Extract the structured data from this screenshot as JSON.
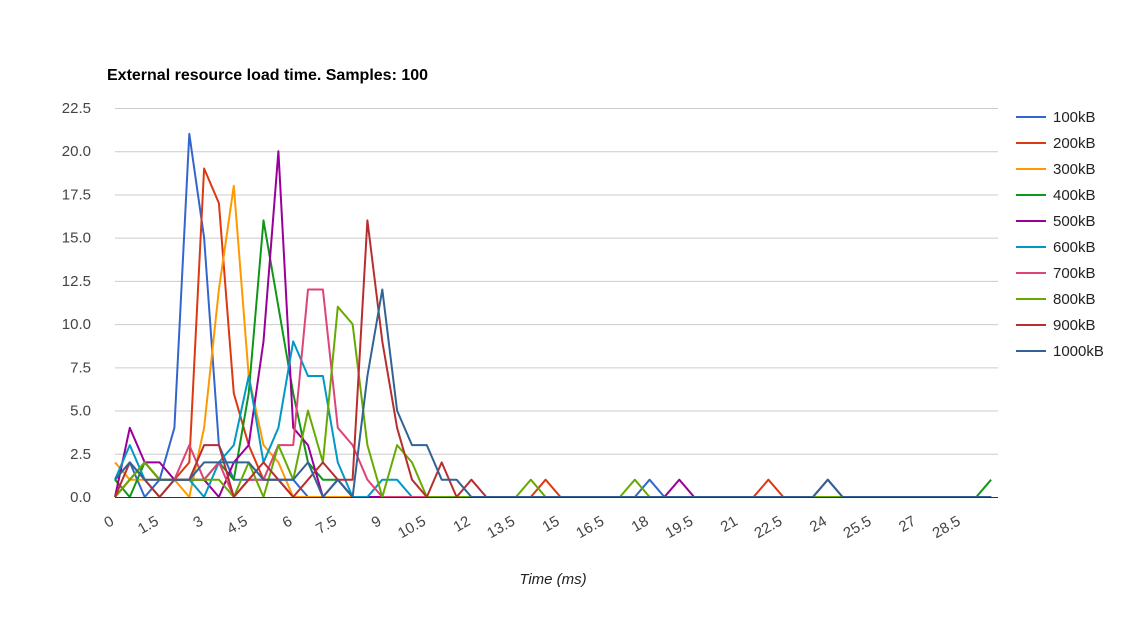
{
  "chart_data": {
    "type": "line",
    "title": "External resource load time. Samples: 100",
    "xlabel": "Time (ms)",
    "ylabel": "",
    "xlim": [
      0,
      29.5
    ],
    "ylim": [
      0,
      22.5
    ],
    "grid": true,
    "legend_position": "right",
    "y_ticks": [
      "0.0",
      "2.5",
      "5.0",
      "7.5",
      "10.0",
      "12.5",
      "15.0",
      "17.5",
      "20.0",
      "22.5"
    ],
    "x_ticks": [
      "0",
      "1.5",
      "3",
      "4.5",
      "6",
      "7.5",
      "9",
      "10.5",
      "12",
      "13.5",
      "15",
      "16.5",
      "18",
      "19.5",
      "21",
      "22.5",
      "24",
      "25.5",
      "27",
      "28.5"
    ],
    "x": [
      0,
      0.5,
      1,
      1.5,
      2,
      2.5,
      3,
      3.5,
      4,
      4.5,
      5,
      5.5,
      6,
      6.5,
      7,
      7.5,
      8,
      8.5,
      9,
      9.5,
      10,
      10.5,
      11,
      11.5,
      12,
      12.5,
      13,
      13.5,
      14,
      14.5,
      15,
      15.5,
      16,
      16.5,
      17,
      17.5,
      18,
      18.5,
      19,
      19.5,
      20,
      20.5,
      21,
      21.5,
      22,
      22.5,
      23,
      23.5,
      24,
      24.5,
      25,
      25.5,
      26,
      26.5,
      27,
      27.5,
      28,
      28.5,
      29,
      29.5
    ],
    "series": [
      {
        "name": "100kB",
        "color": "#3366cc",
        "values": [
          1,
          2,
          0,
          1,
          4,
          21,
          15,
          3,
          1,
          1,
          1,
          1,
          1,
          0,
          0,
          0,
          0,
          0,
          0,
          0,
          0,
          0,
          0,
          0,
          0,
          0,
          0,
          0,
          0,
          0,
          0,
          0,
          0,
          0,
          0,
          0,
          1,
          0,
          0,
          0,
          0,
          0,
          0,
          0,
          0,
          0,
          0,
          0,
          0,
          0,
          0,
          0,
          0,
          0,
          0,
          0,
          0,
          0,
          0,
          0
        ]
      },
      {
        "name": "200kB",
        "color": "#dc3912",
        "values": [
          0,
          1,
          2,
          1,
          1,
          2,
          19,
          17,
          6,
          3,
          1,
          1,
          0,
          0,
          0,
          0,
          0,
          0,
          0,
          0,
          0,
          0,
          0,
          0,
          0,
          0,
          0,
          0,
          0,
          1,
          0,
          0,
          0,
          0,
          0,
          0,
          0,
          0,
          0,
          0,
          0,
          0,
          0,
          0,
          1,
          0,
          0,
          0,
          0,
          0,
          0,
          0,
          0,
          0,
          0,
          0,
          0,
          0,
          0,
          0
        ]
      },
      {
        "name": "300kB",
        "color": "#ff9900",
        "values": [
          2,
          1,
          1,
          1,
          1,
          0,
          4,
          12,
          18,
          7,
          3,
          2,
          0,
          0,
          0,
          0,
          0,
          0,
          0,
          0,
          0,
          0,
          0,
          0,
          0,
          0,
          0,
          0,
          0,
          0,
          0,
          0,
          0,
          0,
          0,
          0,
          0,
          0,
          0,
          0,
          0,
          0,
          0,
          0,
          0,
          0,
          0,
          0,
          0,
          0,
          0,
          0,
          0,
          0,
          0,
          0,
          0,
          0,
          0,
          0
        ]
      },
      {
        "name": "400kB",
        "color": "#109618",
        "values": [
          1,
          0,
          2,
          1,
          1,
          1,
          1,
          2,
          1,
          6,
          16,
          11,
          6,
          2,
          1,
          1,
          0,
          0,
          0,
          0,
          0,
          0,
          0,
          0,
          0,
          0,
          0,
          0,
          0,
          0,
          0,
          0,
          0,
          0,
          0,
          0,
          0,
          0,
          0,
          0,
          0,
          0,
          0,
          0,
          0,
          0,
          0,
          0,
          0,
          0,
          0,
          0,
          0,
          0,
          0,
          0,
          0,
          0,
          0,
          1
        ]
      },
      {
        "name": "500kB",
        "color": "#990099",
        "values": [
          0,
          4,
          2,
          2,
          1,
          1,
          1,
          0,
          2,
          3,
          9,
          20,
          4,
          3,
          0,
          1,
          0,
          0,
          0,
          0,
          0,
          0,
          0,
          0,
          0,
          0,
          0,
          0,
          0,
          0,
          0,
          0,
          0,
          0,
          0,
          0,
          0,
          0,
          1,
          0,
          0,
          0,
          0,
          0,
          0,
          0,
          0,
          0,
          0,
          0,
          0,
          0,
          0,
          0,
          0,
          0,
          0,
          0,
          0,
          0
        ]
      },
      {
        "name": "600kB",
        "color": "#0099c6",
        "values": [
          1,
          3,
          1,
          0,
          1,
          1,
          0,
          2,
          3,
          7,
          2,
          4,
          9,
          7,
          7,
          2,
          0,
          0,
          1,
          1,
          0,
          0,
          0,
          0,
          0,
          0,
          0,
          0,
          0,
          0,
          0,
          0,
          0,
          0,
          0,
          0,
          0,
          0,
          0,
          0,
          0,
          0,
          0,
          0,
          0,
          0,
          0,
          0,
          0,
          0,
          0,
          0,
          0,
          0,
          0,
          0,
          0,
          0,
          0,
          0
        ]
      },
      {
        "name": "700kB",
        "color": "#dd4477",
        "values": [
          0,
          1,
          2,
          1,
          1,
          3,
          1,
          2,
          0,
          1,
          1,
          3,
          3,
          12,
          12,
          4,
          3,
          1,
          0,
          0,
          0,
          0,
          0,
          0,
          0,
          0,
          0,
          0,
          0,
          0,
          0,
          0,
          0,
          0,
          0,
          0,
          0,
          0,
          0,
          0,
          0,
          0,
          0,
          0,
          0,
          0,
          0,
          0,
          0,
          0,
          0,
          0,
          0,
          0,
          0,
          0,
          0,
          0,
          0,
          0
        ]
      },
      {
        "name": "800kB",
        "color": "#66aa00",
        "values": [
          0,
          1,
          2,
          1,
          1,
          1,
          1,
          1,
          0,
          2,
          0,
          3,
          1,
          5,
          2,
          11,
          10,
          3,
          0,
          3,
          2,
          0,
          0,
          0,
          0,
          0,
          0,
          0,
          1,
          0,
          0,
          0,
          0,
          0,
          0,
          1,
          0,
          0,
          0,
          0,
          0,
          0,
          0,
          0,
          0,
          0,
          0,
          0,
          0,
          0,
          0,
          0,
          0,
          0,
          0,
          0,
          0,
          0,
          0,
          0
        ]
      },
      {
        "name": "900kB",
        "color": "#b82e2e",
        "values": [
          0,
          2,
          1,
          0,
          1,
          1,
          3,
          3,
          0,
          1,
          2,
          1,
          0,
          1,
          2,
          1,
          1,
          16,
          9,
          4,
          1,
          0,
          2,
          0,
          1,
          0,
          0,
          0,
          0,
          0,
          0,
          0,
          0,
          0,
          0,
          0,
          0,
          0,
          0,
          0,
          0,
          0,
          0,
          0,
          0,
          0,
          0,
          0,
          1,
          0,
          0,
          0,
          0,
          0,
          0,
          0,
          0,
          0,
          0,
          0
        ]
      },
      {
        "name": "1000kB",
        "color": "#316395",
        "values": [
          1,
          2,
          1,
          1,
          1,
          1,
          2,
          2,
          2,
          2,
          1,
          1,
          1,
          2,
          0,
          1,
          0,
          7,
          12,
          5,
          3,
          3,
          1,
          1,
          0,
          0,
          0,
          0,
          0,
          0,
          0,
          0,
          0,
          0,
          0,
          0,
          0,
          0,
          0,
          0,
          0,
          0,
          0,
          0,
          0,
          0,
          0,
          0,
          1,
          0,
          0,
          0,
          0,
          0,
          0,
          0,
          0,
          0,
          0,
          0
        ]
      }
    ]
  }
}
